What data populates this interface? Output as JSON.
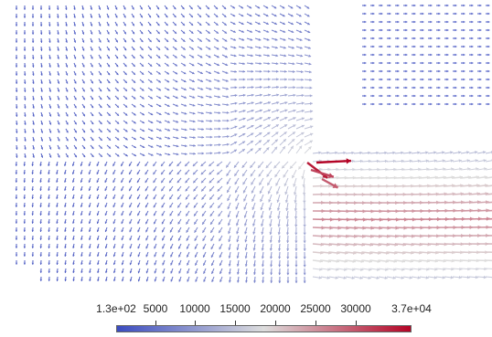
{
  "visualization": {
    "type": "vector-glyph-field",
    "colormap": {
      "low": "#3b4cc0",
      "mid": "#dddddd",
      "high": "#b40426"
    }
  },
  "colorbar": {
    "min_label": "1.3e+02",
    "max_label": "3.7e+04",
    "tick_labels": [
      "5000",
      "10000",
      "15000",
      "20000",
      "25000",
      "30000"
    ],
    "range": [
      130,
      37000
    ],
    "ticks": [
      5000,
      10000,
      15000,
      20000,
      25000,
      30000
    ]
  }
}
